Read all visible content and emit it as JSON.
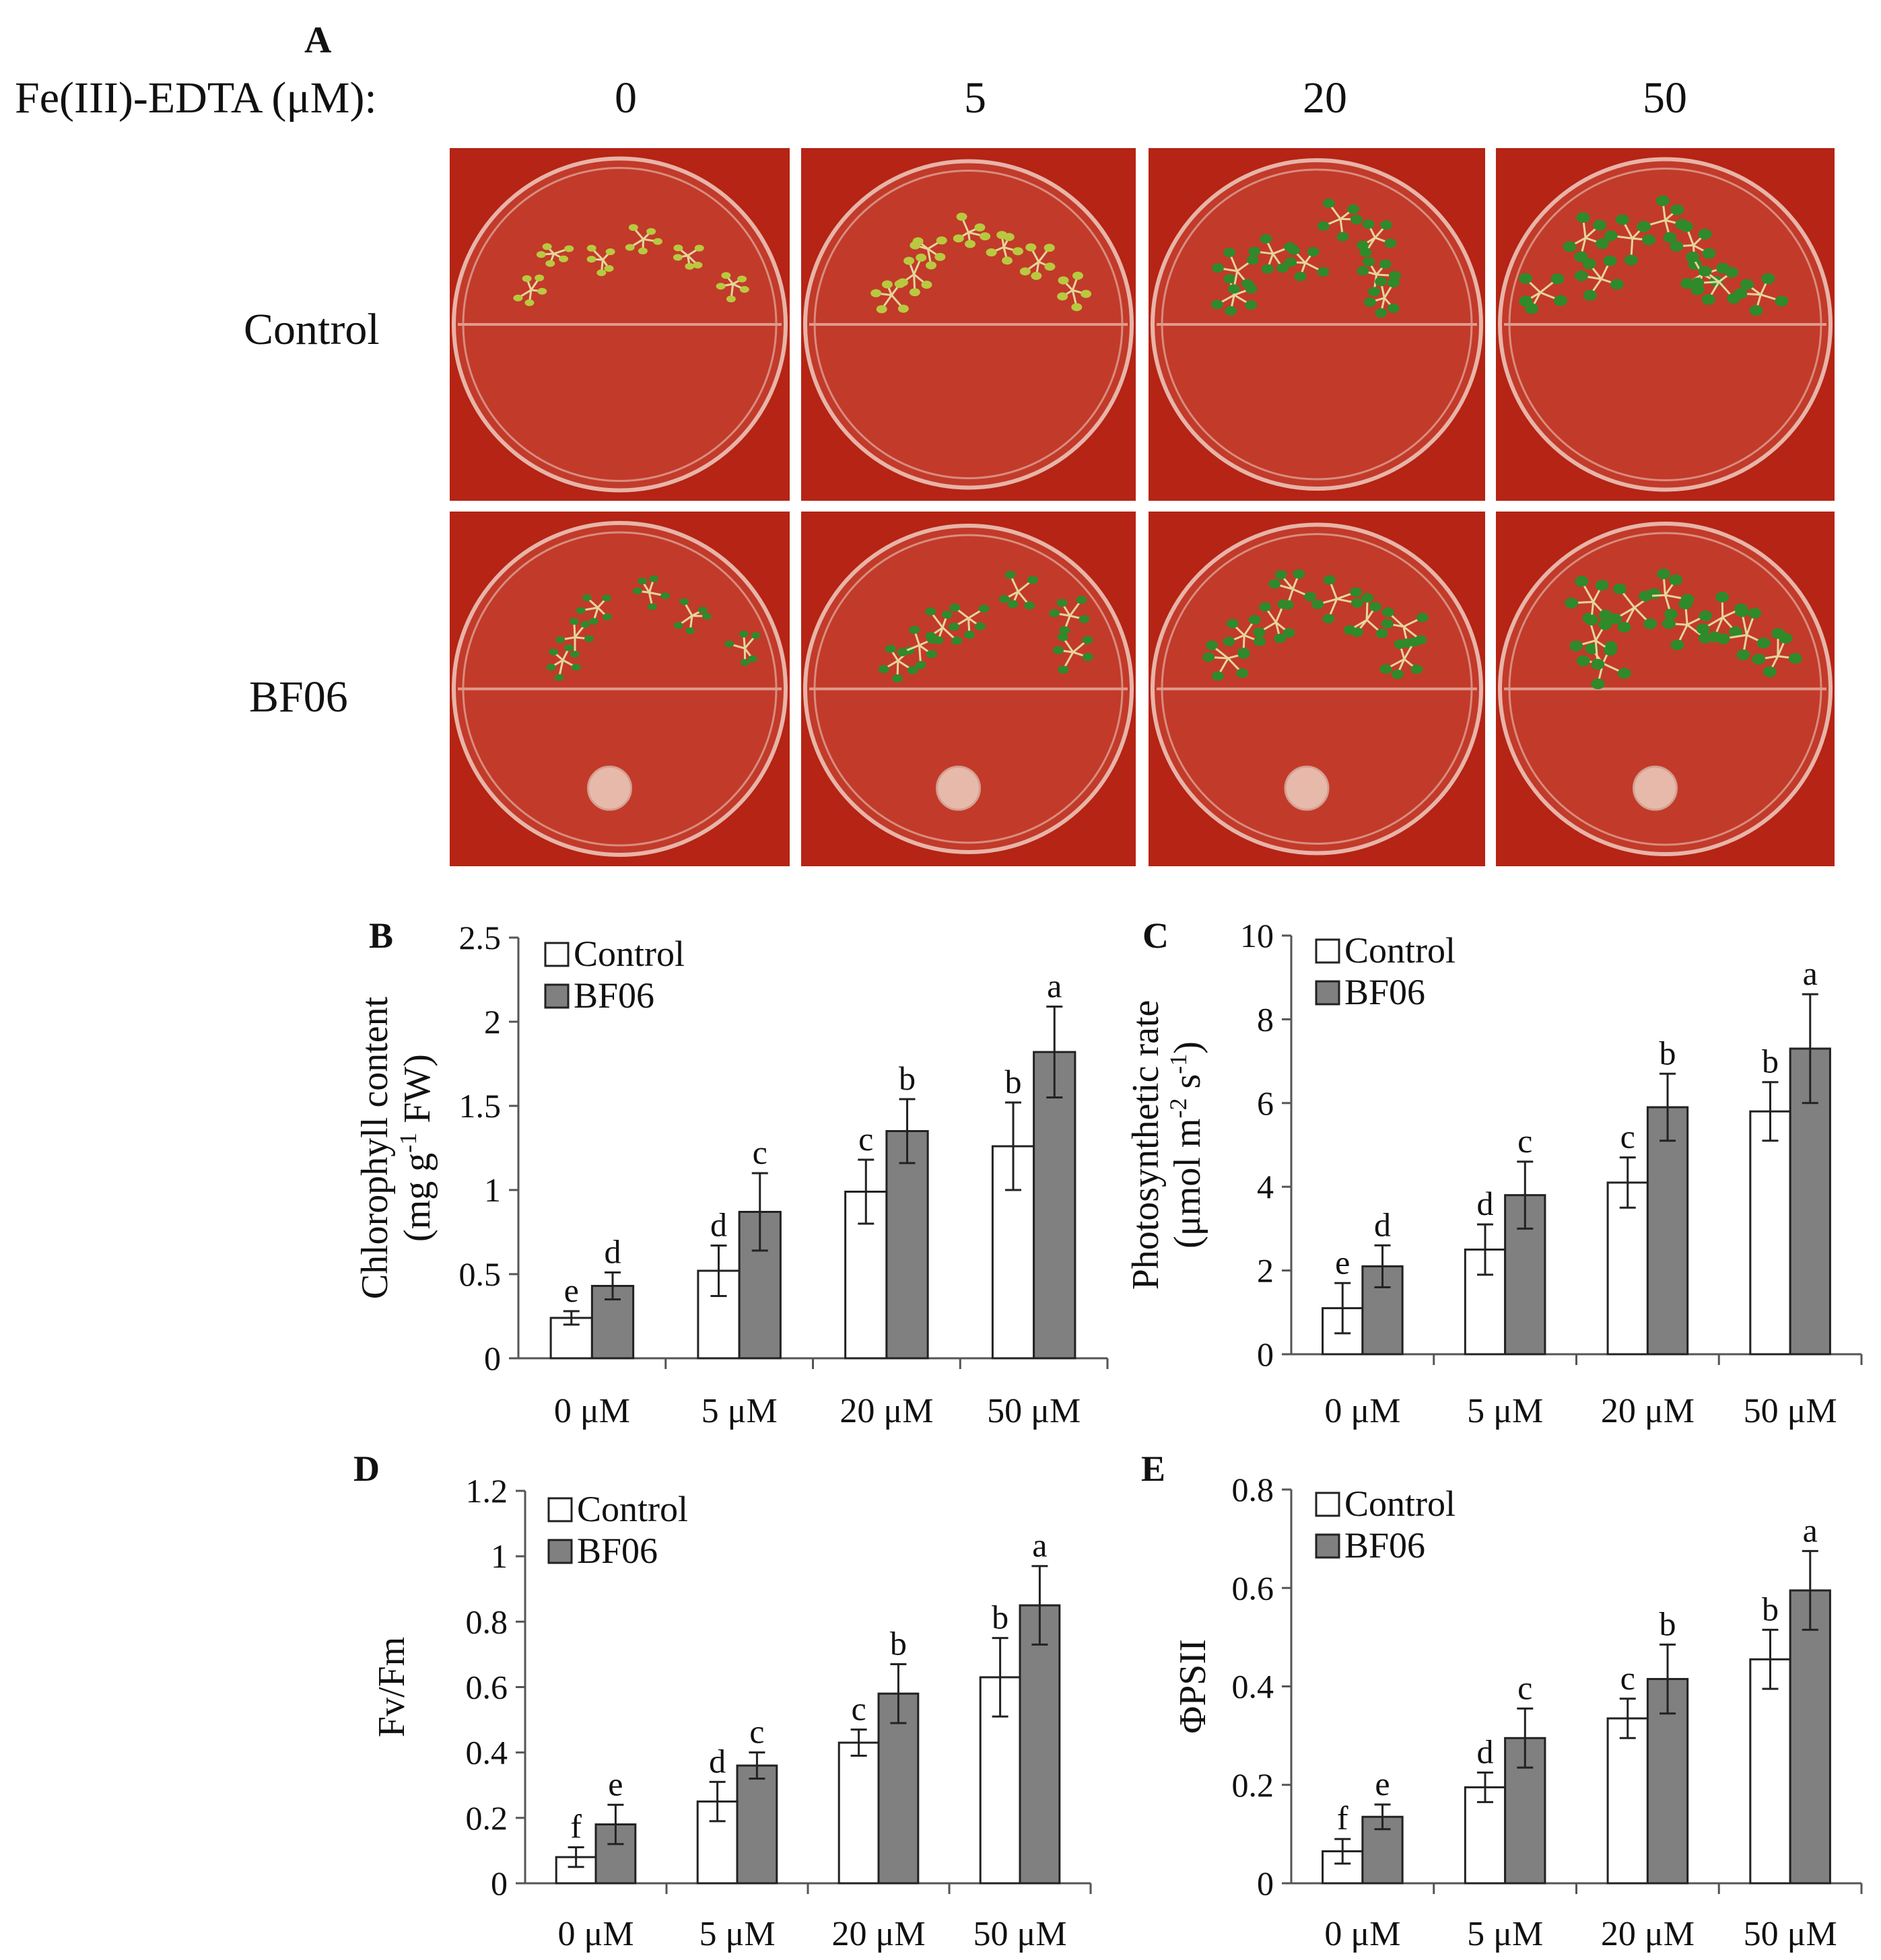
{
  "panel_a": {
    "letter": "A",
    "treatment_label": "Fe(III)-EDTA  (μM):",
    "concentrations": [
      "0",
      "5",
      "20",
      "50"
    ],
    "rows": [
      "Control",
      "BF06"
    ]
  },
  "colors": {
    "control_fill": "#ffffff",
    "bf06_fill": "#808080",
    "plate_background": "#b52414"
  },
  "chart_data": [
    {
      "panel": "B",
      "type": "bar",
      "ylabel_line1": "Chlorophyll content",
      "ylabel_line2": "(mg g",
      "ylabel_sup": "-1",
      "ylabel_line2_end": " FW)",
      "categories": [
        "0 μM",
        "5 μM",
        "20 μM",
        "50 μM"
      ],
      "ylim": [
        0,
        2.5
      ],
      "yticks": [
        0,
        0.5,
        1,
        1.5,
        2,
        2.5
      ],
      "ytick_labels": [
        "0",
        "0.5",
        "1",
        "1.5",
        "2",
        "2.5"
      ],
      "legend": [
        "Control",
        "BF06"
      ],
      "legend_position": "top-left",
      "series": [
        {
          "name": "Control",
          "values": [
            0.24,
            0.52,
            0.99,
            1.26
          ],
          "errors": [
            0.04,
            0.15,
            0.19,
            0.26
          ],
          "letters": [
            "e",
            "d",
            "c",
            "b"
          ]
        },
        {
          "name": "BF06",
          "values": [
            0.43,
            0.87,
            1.35,
            1.82
          ],
          "errors": [
            0.08,
            0.23,
            0.19,
            0.27
          ],
          "letters": [
            "d",
            "c",
            "b",
            "a"
          ]
        }
      ]
    },
    {
      "panel": "C",
      "type": "bar",
      "ylabel_line1": "Photosynthetic rate",
      "ylabel_line2": "(μmol m",
      "ylabel_sup": "-2",
      "ylabel_line2_mid": " s",
      "ylabel_sup2": "-1",
      "ylabel_line2_end": ")",
      "categories": [
        "0 μM",
        "5 μM",
        "20 μM",
        "50 μM"
      ],
      "ylim": [
        0,
        10
      ],
      "yticks": [
        0,
        2,
        4,
        6,
        8,
        10
      ],
      "ytick_labels": [
        "0",
        "2",
        "4",
        "6",
        "8",
        "10"
      ],
      "legend": [
        "Control",
        "BF06"
      ],
      "legend_position": "top-left",
      "series": [
        {
          "name": "Control",
          "values": [
            1.1,
            2.5,
            4.1,
            5.8
          ],
          "errors": [
            0.6,
            0.6,
            0.6,
            0.7
          ],
          "letters": [
            "e",
            "d",
            "c",
            "b"
          ]
        },
        {
          "name": "BF06",
          "values": [
            2.1,
            3.8,
            5.9,
            7.3
          ],
          "errors": [
            0.5,
            0.8,
            0.8,
            1.3
          ],
          "letters": [
            "d",
            "c",
            "b",
            "a"
          ]
        }
      ]
    },
    {
      "panel": "D",
      "type": "bar",
      "ylabel_line1": "Fv/Fm",
      "categories": [
        "0 μM",
        "5 μM",
        "20 μM",
        "50 μM"
      ],
      "ylim": [
        0,
        1.2
      ],
      "yticks": [
        0,
        0.2,
        0.4,
        0.6,
        0.8,
        1.0,
        1.2
      ],
      "ytick_labels": [
        "0",
        "0.2",
        "0.4",
        "0.6",
        "0.8",
        "1",
        "1.2"
      ],
      "legend": [
        "Control",
        "BF06"
      ],
      "legend_position": "top-left",
      "series": [
        {
          "name": "Control",
          "values": [
            0.08,
            0.25,
            0.43,
            0.63
          ],
          "errors": [
            0.03,
            0.06,
            0.04,
            0.12
          ],
          "letters": [
            "f",
            "d",
            "c",
            "b"
          ]
        },
        {
          "name": "BF06",
          "values": [
            0.18,
            0.36,
            0.58,
            0.85
          ],
          "errors": [
            0.06,
            0.04,
            0.09,
            0.12
          ],
          "letters": [
            "e",
            "c",
            "b",
            "a"
          ]
        }
      ]
    },
    {
      "panel": "E",
      "type": "bar",
      "ylabel_line1": "ΦPSII",
      "categories": [
        "0 μM",
        "5 μM",
        "20 μM",
        "50 μM"
      ],
      "ylim": [
        0,
        0.8
      ],
      "yticks": [
        0,
        0.2,
        0.4,
        0.6,
        0.8
      ],
      "ytick_labels": [
        "0",
        "0.2",
        "0.4",
        "0.6",
        "0.8"
      ],
      "legend": [
        "Control",
        "BF06"
      ],
      "legend_position": "top-left",
      "series": [
        {
          "name": "Control",
          "values": [
            0.065,
            0.195,
            0.335,
            0.455
          ],
          "errors": [
            0.025,
            0.03,
            0.04,
            0.06
          ],
          "letters": [
            "f",
            "d",
            "c",
            "b"
          ]
        },
        {
          "name": "BF06",
          "values": [
            0.135,
            0.295,
            0.415,
            0.595
          ],
          "errors": [
            0.025,
            0.06,
            0.07,
            0.08
          ],
          "letters": [
            "e",
            "c",
            "b",
            "a"
          ]
        }
      ]
    }
  ]
}
